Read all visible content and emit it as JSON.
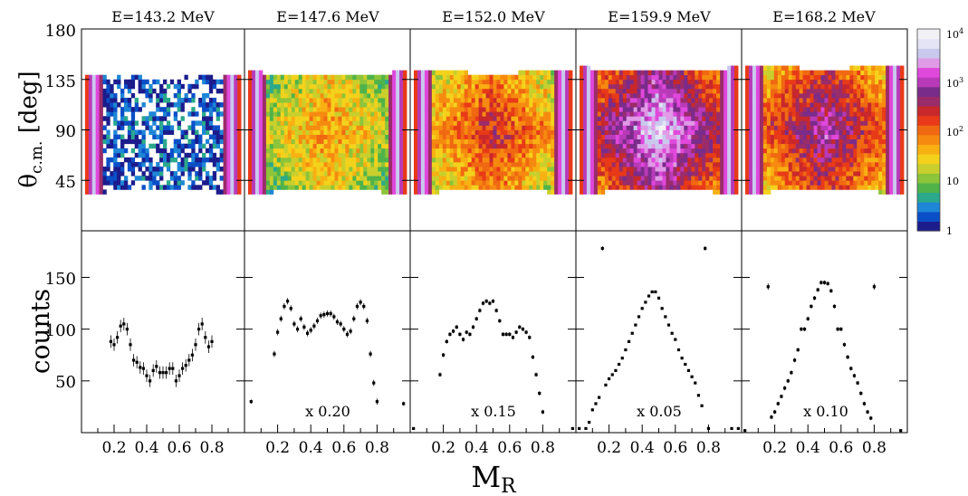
{
  "chart_data": [
    {
      "type": "heatmap",
      "panels": [
        {
          "title": "E=143.2 MeV",
          "intensity": 0.1,
          "scale_label": ""
        },
        {
          "title": "E=147.6 MeV",
          "intensity": 0.45,
          "scale_label": "x 0.20"
        },
        {
          "title": "E=152.0 MeV",
          "intensity": 0.6,
          "scale_label": "x 0.15"
        },
        {
          "title": "E=159.9 MeV",
          "intensity": 0.92,
          "scale_label": "x 0.05"
        },
        {
          "title": "E=168.2 MeV",
          "intensity": 0.75,
          "scale_label": "x 0.10"
        }
      ],
      "ylabel_main": "θ",
      "ylabel_sub": "c.m.",
      "ylabel_unit": " [deg]",
      "ylim": [
        0,
        180
      ],
      "yticks": [
        "45",
        "90",
        "135",
        "180"
      ],
      "xlim": [
        0,
        1
      ],
      "colorbar": {
        "scale": "log",
        "ticks": [
          "1",
          "10",
          "10",
          "10",
          "10"
        ],
        "tick_exponents": [
          "",
          "",
          "2",
          "3",
          "4"
        ],
        "colors": [
          "#1c1c8c",
          "#0a4fc8",
          "#1e86d6",
          "#2aa98c",
          "#4fb34a",
          "#8cc43a",
          "#c9cf2c",
          "#f4d21c",
          "#f8b012",
          "#f68a10",
          "#f06812",
          "#e83a18",
          "#c8282c",
          "#9a2c6a",
          "#7a2c8a",
          "#b83ab8",
          "#e048dc",
          "#e09ae6",
          "#c9c9ee",
          "#e4e4f6",
          "#f2f2f6"
        ]
      }
    },
    {
      "type": "scatter",
      "ylabel": "counts",
      "xlabel_main": "M",
      "xlabel_sub": "R",
      "xticks": [
        "0.2",
        "0.4",
        "0.6",
        "0.8"
      ],
      "ylim": [
        0,
        195
      ],
      "yticks": [
        "50",
        "100",
        "150"
      ],
      "xlim": [
        0,
        1
      ],
      "series": [
        {
          "x": [
            0.18,
            0.2,
            0.22,
            0.24,
            0.26,
            0.28,
            0.3,
            0.32,
            0.34,
            0.36,
            0.38,
            0.4,
            0.42,
            0.44,
            0.46,
            0.48,
            0.5,
            0.52,
            0.54,
            0.56,
            0.58,
            0.6,
            0.62,
            0.64,
            0.66,
            0.68,
            0.7,
            0.72,
            0.74,
            0.76,
            0.78,
            0.8
          ],
          "y": [
            88,
            85,
            92,
            103,
            105,
            100,
            85,
            70,
            68,
            63,
            62,
            55,
            50,
            60,
            64,
            58,
            58,
            58,
            62,
            62,
            50,
            55,
            62,
            65,
            70,
            75,
            85,
            100,
            105,
            92,
            83,
            88
          ],
          "err": [
            6,
            6,
            6,
            6,
            6,
            6,
            6,
            6,
            6,
            6,
            6,
            6,
            6,
            6,
            6,
            6,
            6,
            6,
            6,
            6,
            6,
            6,
            6,
            6,
            6,
            6,
            6,
            6,
            6,
            6,
            6,
            6
          ]
        },
        {
          "x": [
            0.04,
            0.18,
            0.2,
            0.22,
            0.24,
            0.26,
            0.28,
            0.3,
            0.32,
            0.34,
            0.36,
            0.38,
            0.4,
            0.42,
            0.44,
            0.46,
            0.48,
            0.5,
            0.52,
            0.54,
            0.56,
            0.58,
            0.6,
            0.62,
            0.64,
            0.66,
            0.68,
            0.7,
            0.72,
            0.74,
            0.76,
            0.78,
            0.8,
            0.96
          ],
          "y": [
            30,
            76,
            97,
            110,
            122,
            127,
            120,
            105,
            100,
            110,
            102,
            96,
            99,
            103,
            108,
            113,
            114,
            115,
            115,
            112,
            107,
            105,
            100,
            95,
            98,
            110,
            122,
            126,
            122,
            108,
            76,
            48,
            30,
            28
          ],
          "err": [
            2,
            3,
            3,
            3,
            3,
            3,
            3,
            3,
            3,
            3,
            3,
            3,
            3,
            3,
            3,
            3,
            3,
            3,
            3,
            3,
            3,
            3,
            3,
            3,
            3,
            3,
            3,
            3,
            3,
            3,
            3,
            3,
            3,
            2
          ]
        },
        {
          "x": [
            0.02,
            0.18,
            0.2,
            0.22,
            0.24,
            0.26,
            0.28,
            0.3,
            0.32,
            0.34,
            0.36,
            0.38,
            0.4,
            0.42,
            0.44,
            0.46,
            0.48,
            0.5,
            0.52,
            0.54,
            0.56,
            0.58,
            0.6,
            0.62,
            0.64,
            0.66,
            0.68,
            0.7,
            0.72,
            0.74,
            0.76,
            0.78,
            0.8,
            0.98
          ],
          "y": [
            4,
            56,
            75,
            88,
            95,
            98,
            102,
            95,
            90,
            97,
            95,
            102,
            110,
            118,
            125,
            127,
            125,
            127,
            118,
            108,
            95,
            95,
            95,
            92,
            97,
            102,
            100,
            97,
            92,
            73,
            56,
            38,
            20,
            4
          ],
          "err": [
            1,
            2,
            2,
            2,
            2,
            2,
            2,
            2,
            2,
            2,
            2,
            2,
            2,
            2,
            2,
            2,
            2,
            2,
            2,
            2,
            2,
            2,
            2,
            2,
            2,
            2,
            2,
            2,
            2,
            2,
            2,
            2,
            2,
            1
          ]
        },
        {
          "x": [
            0.02,
            0.06,
            0.08,
            0.1,
            0.12,
            0.14,
            0.16,
            0.18,
            0.2,
            0.22,
            0.24,
            0.26,
            0.28,
            0.3,
            0.32,
            0.34,
            0.36,
            0.38,
            0.4,
            0.42,
            0.44,
            0.46,
            0.48,
            0.5,
            0.52,
            0.54,
            0.56,
            0.58,
            0.6,
            0.62,
            0.64,
            0.66,
            0.68,
            0.7,
            0.72,
            0.74,
            0.76,
            0.78,
            0.8,
            0.94,
            0.98
          ],
          "y": [
            4,
            4,
            10,
            22,
            28,
            34,
            178,
            46,
            52,
            56,
            60,
            66,
            72,
            80,
            88,
            96,
            104,
            112,
            120,
            126,
            132,
            136,
            136,
            130,
            120,
            112,
            104,
            96,
            90,
            80,
            72,
            66,
            60,
            54,
            48,
            36,
            26,
            178,
            4,
            4,
            4
          ],
          "err": [
            1,
            1,
            1,
            1,
            1,
            1,
            2,
            1,
            1,
            1,
            1,
            1,
            1,
            1,
            1,
            1,
            1,
            1,
            1,
            1,
            1,
            1,
            1,
            1,
            1,
            1,
            1,
            1,
            1,
            1,
            1,
            1,
            1,
            1,
            1,
            1,
            1,
            2,
            1,
            1,
            1
          ]
        },
        {
          "x": [
            0.02,
            0.16,
            0.18,
            0.2,
            0.22,
            0.24,
            0.26,
            0.28,
            0.3,
            0.32,
            0.34,
            0.36,
            0.38,
            0.4,
            0.42,
            0.44,
            0.46,
            0.48,
            0.5,
            0.52,
            0.54,
            0.56,
            0.58,
            0.6,
            0.62,
            0.64,
            0.66,
            0.68,
            0.7,
            0.72,
            0.74,
            0.76,
            0.78,
            0.8,
            0.96
          ],
          "y": [
            2,
            141,
            15,
            20,
            28,
            35,
            43,
            50,
            58,
            70,
            80,
            100,
            100,
            110,
            122,
            130,
            138,
            145,
            145,
            144,
            137,
            122,
            100,
            100,
            85,
            73,
            62,
            55,
            48,
            38,
            28,
            20,
            14,
            141,
            2
          ],
          "err": [
            1,
            3,
            2,
            2,
            2,
            2,
            2,
            2,
            2,
            2,
            2,
            2,
            2,
            2,
            2,
            2,
            2,
            2,
            2,
            2,
            2,
            2,
            2,
            2,
            2,
            2,
            2,
            2,
            2,
            2,
            2,
            2,
            2,
            3,
            1
          ]
        }
      ]
    }
  ]
}
